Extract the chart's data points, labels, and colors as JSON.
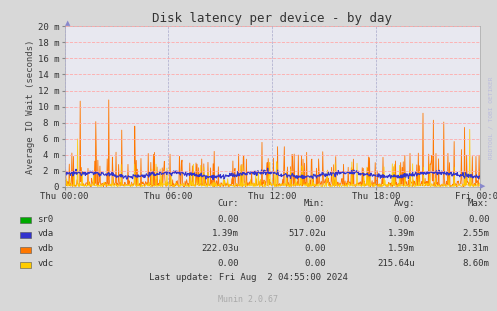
{
  "title": "Disk latency per device - by day",
  "ylabel": "Average IO Wait (seconds)",
  "bg_color": "#d8d8d8",
  "plot_bg_color": "#e8e8f0",
  "grid_color_h": "#ffaaaa",
  "grid_color_v": "#aaaacc",
  "x_tick_labels": [
    "Thu 00:00",
    "Thu 06:00",
    "Thu 12:00",
    "Thu 18:00",
    "Fri 00:00"
  ],
  "y_tick_labels": [
    "0",
    "2 m",
    "4 m",
    "6 m",
    "8 m",
    "10 m",
    "12 m",
    "14 m",
    "16 m",
    "18 m",
    "20 m"
  ],
  "ylim": [
    0,
    20
  ],
  "legend_colors": [
    "#00aa00",
    "#3333cc",
    "#ff7700",
    "#ffcc00"
  ],
  "row_labels": [
    "sr0",
    "vda",
    "vdb",
    "vdc"
  ],
  "table_values": [
    [
      "0.00",
      "0.00",
      "0.00",
      "0.00"
    ],
    [
      "1.39m",
      "517.02u",
      "1.39m",
      "2.55m"
    ],
    [
      "222.03u",
      "0.00",
      "1.59m",
      "10.31m"
    ],
    [
      "0.00",
      "0.00",
      "215.64u",
      "8.60m"
    ]
  ],
  "last_update": "Last update: Fri Aug  2 04:55:00 2024",
  "munin_version": "Munin 2.0.67",
  "watermark": "RRDTOOL / TOBI OETIKER"
}
